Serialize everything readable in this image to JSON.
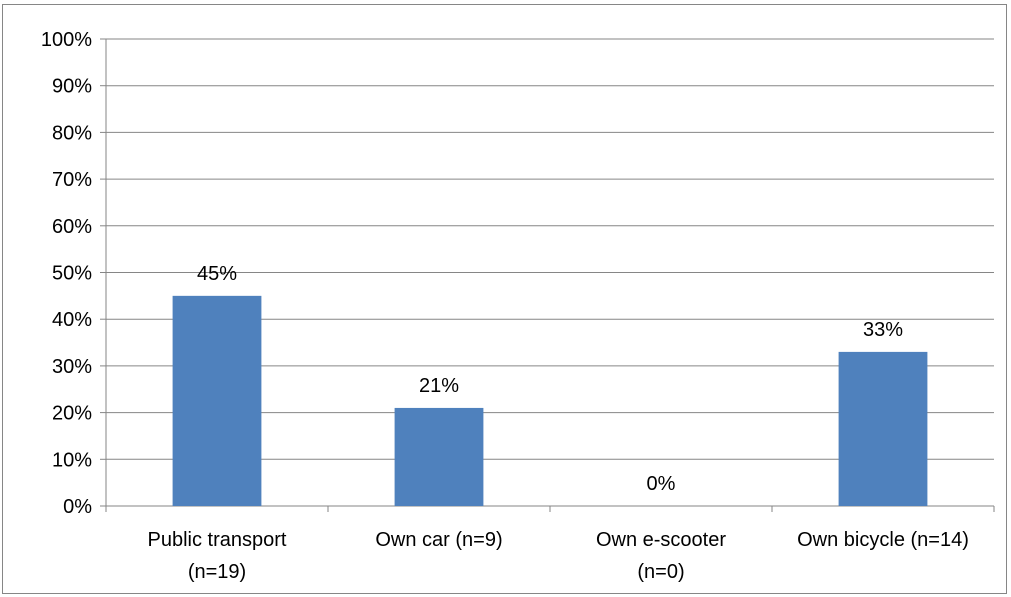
{
  "chart_data": {
    "type": "bar",
    "categories": [
      [
        "Public transport",
        "(n=19)"
      ],
      [
        "Own car (n=9)"
      ],
      [
        "Own e-scooter",
        "(n=0)"
      ],
      [
        "Own bicycle (n=14)"
      ]
    ],
    "values": [
      45,
      21,
      0,
      33
    ],
    "data_labels": [
      "45%",
      "21%",
      "0%",
      "33%"
    ],
    "y_ticks": [
      "0%",
      "10%",
      "20%",
      "30%",
      "40%",
      "50%",
      "60%",
      "70%",
      "80%",
      "90%",
      "100%"
    ],
    "ylim": [
      0,
      100
    ],
    "grid": true,
    "bar_color": "#4F81BD",
    "title": "",
    "xlabel": "",
    "ylabel": ""
  }
}
